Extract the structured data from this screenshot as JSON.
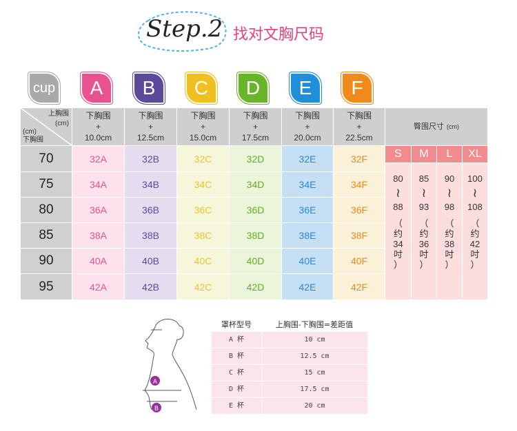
{
  "header": {
    "step": "Step.2",
    "title": "找对文胸尺码"
  },
  "cups": [
    {
      "label": "cup",
      "color": "#a9a9a9"
    },
    {
      "label": "A",
      "color": "#e9528c",
      "bg": "#fde1ec",
      "text": "#e9528c"
    },
    {
      "label": "B",
      "color": "#5b4a9b",
      "bg": "#e5dcf0",
      "text": "#5b4a9b"
    },
    {
      "label": "C",
      "color": "#f0c020",
      "bg": "#f6f7da",
      "text": "#e9c52a"
    },
    {
      "label": "D",
      "color": "#6ab42a",
      "bg": "#ebf5d9",
      "text": "#64ad22"
    },
    {
      "label": "E",
      "color": "#1e8fd8",
      "bg": "#c5e0f5",
      "text": "#2a86d4"
    },
    {
      "label": "F",
      "color": "#f08a1a",
      "bg": "#fbf0d8",
      "text": "#f08a1a"
    }
  ],
  "corner": {
    "top": "上胸围",
    "top_unit": "(cm)",
    "bottom_unit": "(cm)",
    "bottom": "下胸围"
  },
  "col_headers": [
    {
      "l1": "下胸围",
      "l2": "+",
      "l3": "10.0cm"
    },
    {
      "l1": "下胸围",
      "l2": "+",
      "l3": "12.5cm"
    },
    {
      "l1": "下胸围",
      "l2": "+",
      "l3": "15.0cm"
    },
    {
      "l1": "下胸围",
      "l2": "+",
      "l3": "17.5cm"
    },
    {
      "l1": "下胸围",
      "l2": "+",
      "l3": "20.0cm"
    },
    {
      "l1": "下胸围",
      "l2": "+",
      "l3": "22.5cm"
    }
  ],
  "rows": [
    {
      "band": "70",
      "sizes": [
        "32A",
        "32B",
        "32C",
        "32D",
        "32E",
        "32F"
      ]
    },
    {
      "band": "75",
      "sizes": [
        "34A",
        "34B",
        "34C",
        "34D",
        "34E",
        "34F"
      ]
    },
    {
      "band": "80",
      "sizes": [
        "36A",
        "36B",
        "36C",
        "36D",
        "36E",
        "36F"
      ]
    },
    {
      "band": "85",
      "sizes": [
        "38A",
        "38B",
        "38C",
        "38D",
        "38E",
        "38F"
      ]
    },
    {
      "band": "90",
      "sizes": [
        "40A",
        "40B",
        "40C",
        "40D",
        "40E",
        "40F"
      ]
    },
    {
      "band": "95",
      "sizes": [
        "42A",
        "42B",
        "42C",
        "42D",
        "42E",
        "42F"
      ]
    }
  ],
  "hip": {
    "title": "臀围尺寸",
    "unit": "(cm)",
    "sizes": [
      {
        "size": "S",
        "from": "80",
        "tilde": "≀",
        "to": "88",
        "approx": [
          "（",
          "约",
          "34",
          "吋",
          "）"
        ]
      },
      {
        "size": "M",
        "from": "85",
        "tilde": "≀",
        "to": "93",
        "approx": [
          "（",
          "约",
          "36",
          "吋",
          "）"
        ]
      },
      {
        "size": "L",
        "from": "90",
        "tilde": "≀",
        "to": "98",
        "approx": [
          "（",
          "约",
          "38",
          "吋",
          "）"
        ]
      },
      {
        "size": "XL",
        "from": "100",
        "tilde": "≀",
        "to": "108",
        "approx": [
          "（",
          "约",
          "42",
          "吋",
          "）"
        ]
      }
    ]
  },
  "diff_table": {
    "h1": "罩杯型号",
    "h2": "上胸围-下胸围=差距值",
    "rows": [
      {
        "cup": "A 杯",
        "diff": "10 cm"
      },
      {
        "cup": "B 杯",
        "diff": "12.5 cm"
      },
      {
        "cup": "C 杯",
        "diff": "15 cm"
      },
      {
        "cup": "D 杯",
        "diff": "17.5 cm"
      },
      {
        "cup": "E 杯",
        "diff": "20 cm"
      }
    ]
  },
  "figure": {
    "a": "A",
    "b": "B"
  }
}
